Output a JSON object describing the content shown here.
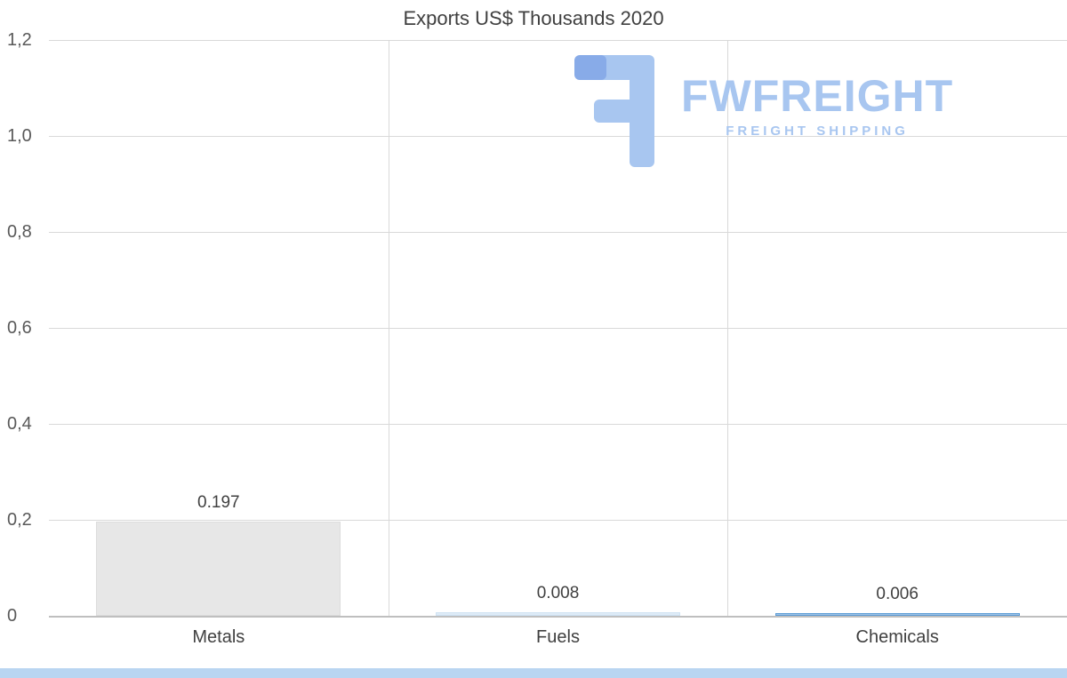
{
  "chart_data": {
    "type": "bar",
    "title": "Exports US$ Thousands 2020",
    "categories": [
      "Metals",
      "Fuels",
      "Chemicals"
    ],
    "values": [
      0.197,
      0.008,
      0.006
    ],
    "value_labels": [
      "0.197",
      "0.008",
      "0.006"
    ],
    "xlabel": "",
    "ylabel": "",
    "ylim": [
      0,
      1.2
    ],
    "y_ticks": [
      {
        "label": "1,2",
        "value": 1.2
      },
      {
        "label": "1,0",
        "value": 1.0
      },
      {
        "label": "0,8",
        "value": 0.8
      },
      {
        "label": "0,6",
        "value": 0.6
      },
      {
        "label": "0,4",
        "value": 0.4
      },
      {
        "label": "0,2",
        "value": 0.2
      },
      {
        "label": "0",
        "value": 0
      }
    ],
    "grid": true,
    "legend": false,
    "bar_styles": [
      {
        "fill": "#e7e7e7",
        "border": "#dcdcdc"
      },
      {
        "fill": "#deebf7",
        "border": "#cfe2f3"
      },
      {
        "fill": "#9dc3e6",
        "border": "#5b9bd5"
      }
    ],
    "grid_color": "#d9d9d9",
    "axis_color": "#bfbfbf",
    "text_color": "#404040",
    "tick_color": "#595959"
  },
  "watermark": {
    "brand": "FWFREIGHT",
    "tagline": "FREIGHT SHIPPING",
    "color": "#a8c6f0",
    "icon_color": "#a8c6f0",
    "icon_accent_color": "#88abe8"
  },
  "footer": {
    "strip_color": "#b9d5f1"
  }
}
